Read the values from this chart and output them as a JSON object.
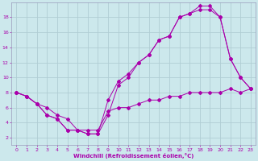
{
  "xlabel": "Windchill (Refroidissement éolien,°C)",
  "xlim": [
    -0.5,
    23.5
  ],
  "ylim": [
    1,
    20
  ],
  "xticks": [
    0,
    1,
    2,
    3,
    4,
    5,
    6,
    7,
    8,
    9,
    10,
    11,
    12,
    13,
    14,
    15,
    16,
    17,
    18,
    19,
    20,
    21,
    22,
    23
  ],
  "yticks": [
    2,
    4,
    6,
    8,
    10,
    12,
    14,
    16,
    18
  ],
  "bg_color": "#cce8ec",
  "line_color": "#aa00aa",
  "grid_color": "#b0cdd4",
  "line1_x": [
    0,
    1,
    2,
    3,
    4,
    5,
    6,
    7,
    8,
    9,
    10,
    11,
    12,
    13,
    14,
    15,
    16,
    17,
    18,
    19,
    20,
    21,
    22,
    23
  ],
  "line1_y": [
    8,
    7.5,
    6.5,
    6,
    5,
    4.5,
    3,
    3,
    3,
    5.5,
    6,
    6,
    6.5,
    7,
    7,
    7.5,
    7.5,
    8,
    8,
    8,
    8,
    8.5,
    8,
    8.5
  ],
  "line2_x": [
    0,
    1,
    2,
    3,
    4,
    5,
    6,
    7,
    8,
    9,
    10,
    11,
    12,
    13,
    14,
    15,
    16,
    17,
    18,
    19,
    20,
    21,
    22,
    23
  ],
  "line2_y": [
    8,
    7.5,
    6.5,
    5,
    4.5,
    3,
    3,
    2.5,
    2.5,
    7,
    9.5,
    10.5,
    12,
    13,
    15,
    15.5,
    18,
    18.5,
    19,
    19,
    18,
    12.5,
    10,
    8.5
  ],
  "line3_x": [
    0,
    1,
    2,
    3,
    4,
    5,
    6,
    7,
    8,
    9,
    10,
    11,
    12,
    13,
    14,
    15,
    16,
    17,
    18,
    19,
    20,
    21,
    22,
    23
  ],
  "line3_y": [
    8,
    7.5,
    6.5,
    5,
    4.5,
    3,
    3,
    2.5,
    2.5,
    5,
    9,
    10,
    12,
    13,
    15,
    15.5,
    18,
    18.5,
    19.5,
    19.5,
    18,
    12.5,
    10,
    8.5
  ]
}
